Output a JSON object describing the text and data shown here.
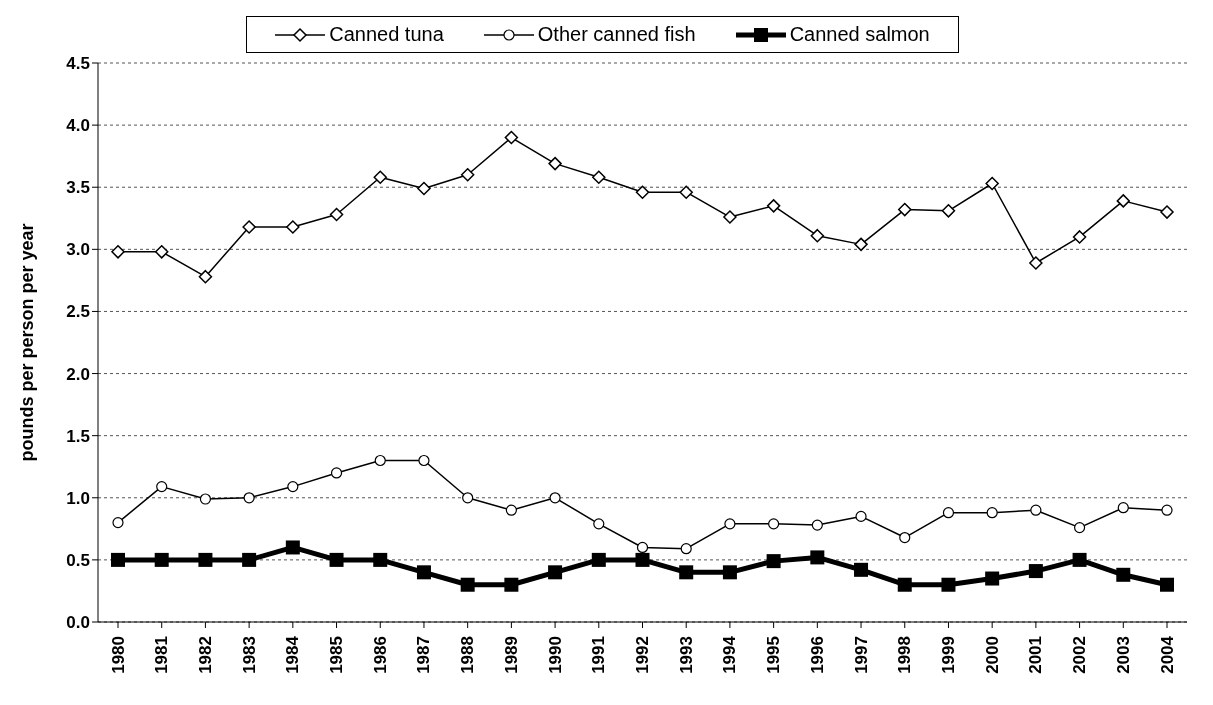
{
  "chart_data": {
    "type": "line",
    "ylabel": "pounds per person per year",
    "categories": [
      "1980",
      "1981",
      "1982",
      "1983",
      "1984",
      "1985",
      "1986",
      "1987",
      "1988",
      "1989",
      "1990",
      "1991",
      "1992",
      "1993",
      "1994",
      "1995",
      "1996",
      "1997",
      "1998",
      "1999",
      "2000",
      "2001",
      "2002",
      "2003",
      "2004"
    ],
    "series": [
      {
        "name": "Canned tuna",
        "color": "#000000",
        "marker": "diamond",
        "values": [
          2.98,
          2.98,
          2.78,
          3.18,
          3.18,
          3.28,
          3.58,
          3.49,
          3.6,
          3.9,
          3.69,
          3.58,
          3.46,
          3.46,
          3.26,
          3.35,
          3.11,
          3.04,
          3.32,
          3.31,
          3.53,
          2.89,
          3.1,
          3.39,
          3.3
        ]
      },
      {
        "name": "Other canned fish",
        "color": "#000000",
        "marker": "circle",
        "values": [
          0.8,
          1.09,
          0.99,
          1.0,
          1.09,
          1.2,
          1.3,
          1.3,
          1.0,
          0.9,
          1.0,
          0.79,
          0.6,
          0.59,
          0.79,
          0.79,
          0.78,
          0.85,
          0.68,
          0.88,
          0.88,
          0.9,
          0.76,
          0.92,
          0.9
        ]
      },
      {
        "name": "Canned salmon",
        "color": "#000000",
        "marker": "square",
        "values": [
          0.5,
          0.5,
          0.5,
          0.5,
          0.6,
          0.5,
          0.5,
          0.4,
          0.3,
          0.3,
          0.4,
          0.5,
          0.5,
          0.4,
          0.4,
          0.49,
          0.52,
          0.42,
          0.3,
          0.3,
          0.35,
          0.41,
          0.5,
          0.38,
          0.3
        ]
      }
    ],
    "ylim": [
      0,
      4.5
    ],
    "yticks": [
      {
        "value": 0,
        "label": "0.0"
      },
      {
        "value": 0.5,
        "label": "0.5"
      },
      {
        "value": 1,
        "label": "1.0"
      },
      {
        "value": 1.5,
        "label": "1.5"
      },
      {
        "value": 2,
        "label": "2.0"
      },
      {
        "value": 2.5,
        "label": "2.5"
      },
      {
        "value": 3,
        "label": "3.0"
      },
      {
        "value": 3.5,
        "label": "3.5"
      },
      {
        "value": 4,
        "label": "4.0"
      },
      {
        "value": 4.5,
        "label": "4.5"
      }
    ],
    "grid": "y",
    "legend": "top",
    "line_style": "solid"
  }
}
